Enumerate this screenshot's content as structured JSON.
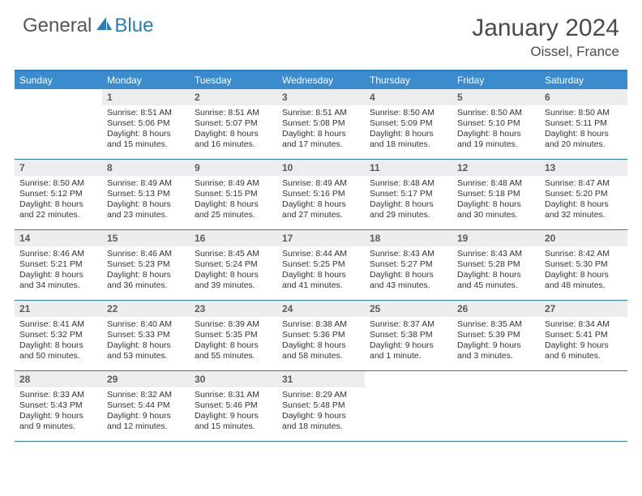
{
  "logo": {
    "general": "General",
    "blue": "Blue"
  },
  "title": "January 2024",
  "location": "Oissel, France",
  "colors": {
    "header_bar": "#3b8bcf",
    "border": "#2b7bbf",
    "daynum_bg": "#ecedee",
    "text": "#333333",
    "title_text": "#4a4a4a"
  },
  "dayNames": [
    "Sunday",
    "Monday",
    "Tuesday",
    "Wednesday",
    "Thursday",
    "Friday",
    "Saturday"
  ],
  "weeks": [
    [
      null,
      {
        "n": "1",
        "sr": "8:51 AM",
        "ss": "5:06 PM",
        "dl": "8 hours and 15 minutes."
      },
      {
        "n": "2",
        "sr": "8:51 AM",
        "ss": "5:07 PM",
        "dl": "8 hours and 16 minutes."
      },
      {
        "n": "3",
        "sr": "8:51 AM",
        "ss": "5:08 PM",
        "dl": "8 hours and 17 minutes."
      },
      {
        "n": "4",
        "sr": "8:50 AM",
        "ss": "5:09 PM",
        "dl": "8 hours and 18 minutes."
      },
      {
        "n": "5",
        "sr": "8:50 AM",
        "ss": "5:10 PM",
        "dl": "8 hours and 19 minutes."
      },
      {
        "n": "6",
        "sr": "8:50 AM",
        "ss": "5:11 PM",
        "dl": "8 hours and 20 minutes."
      }
    ],
    [
      {
        "n": "7",
        "sr": "8:50 AM",
        "ss": "5:12 PM",
        "dl": "8 hours and 22 minutes."
      },
      {
        "n": "8",
        "sr": "8:49 AM",
        "ss": "5:13 PM",
        "dl": "8 hours and 23 minutes."
      },
      {
        "n": "9",
        "sr": "8:49 AM",
        "ss": "5:15 PM",
        "dl": "8 hours and 25 minutes."
      },
      {
        "n": "10",
        "sr": "8:49 AM",
        "ss": "5:16 PM",
        "dl": "8 hours and 27 minutes."
      },
      {
        "n": "11",
        "sr": "8:48 AM",
        "ss": "5:17 PM",
        "dl": "8 hours and 29 minutes."
      },
      {
        "n": "12",
        "sr": "8:48 AM",
        "ss": "5:18 PM",
        "dl": "8 hours and 30 minutes."
      },
      {
        "n": "13",
        "sr": "8:47 AM",
        "ss": "5:20 PM",
        "dl": "8 hours and 32 minutes."
      }
    ],
    [
      {
        "n": "14",
        "sr": "8:46 AM",
        "ss": "5:21 PM",
        "dl": "8 hours and 34 minutes."
      },
      {
        "n": "15",
        "sr": "8:46 AM",
        "ss": "5:23 PM",
        "dl": "8 hours and 36 minutes."
      },
      {
        "n": "16",
        "sr": "8:45 AM",
        "ss": "5:24 PM",
        "dl": "8 hours and 39 minutes."
      },
      {
        "n": "17",
        "sr": "8:44 AM",
        "ss": "5:25 PM",
        "dl": "8 hours and 41 minutes."
      },
      {
        "n": "18",
        "sr": "8:43 AM",
        "ss": "5:27 PM",
        "dl": "8 hours and 43 minutes."
      },
      {
        "n": "19",
        "sr": "8:43 AM",
        "ss": "5:28 PM",
        "dl": "8 hours and 45 minutes."
      },
      {
        "n": "20",
        "sr": "8:42 AM",
        "ss": "5:30 PM",
        "dl": "8 hours and 48 minutes."
      }
    ],
    [
      {
        "n": "21",
        "sr": "8:41 AM",
        "ss": "5:32 PM",
        "dl": "8 hours and 50 minutes."
      },
      {
        "n": "22",
        "sr": "8:40 AM",
        "ss": "5:33 PM",
        "dl": "8 hours and 53 minutes."
      },
      {
        "n": "23",
        "sr": "8:39 AM",
        "ss": "5:35 PM",
        "dl": "8 hours and 55 minutes."
      },
      {
        "n": "24",
        "sr": "8:38 AM",
        "ss": "5:36 PM",
        "dl": "8 hours and 58 minutes."
      },
      {
        "n": "25",
        "sr": "8:37 AM",
        "ss": "5:38 PM",
        "dl": "9 hours and 1 minute."
      },
      {
        "n": "26",
        "sr": "8:35 AM",
        "ss": "5:39 PM",
        "dl": "9 hours and 3 minutes."
      },
      {
        "n": "27",
        "sr": "8:34 AM",
        "ss": "5:41 PM",
        "dl": "9 hours and 6 minutes."
      }
    ],
    [
      {
        "n": "28",
        "sr": "8:33 AM",
        "ss": "5:43 PM",
        "dl": "9 hours and 9 minutes."
      },
      {
        "n": "29",
        "sr": "8:32 AM",
        "ss": "5:44 PM",
        "dl": "9 hours and 12 minutes."
      },
      {
        "n": "30",
        "sr": "8:31 AM",
        "ss": "5:46 PM",
        "dl": "9 hours and 15 minutes."
      },
      {
        "n": "31",
        "sr": "8:29 AM",
        "ss": "5:48 PM",
        "dl": "9 hours and 18 minutes."
      },
      null,
      null,
      null
    ]
  ],
  "labels": {
    "sunrise": "Sunrise:",
    "sunset": "Sunset:",
    "daylight": "Daylight:"
  }
}
